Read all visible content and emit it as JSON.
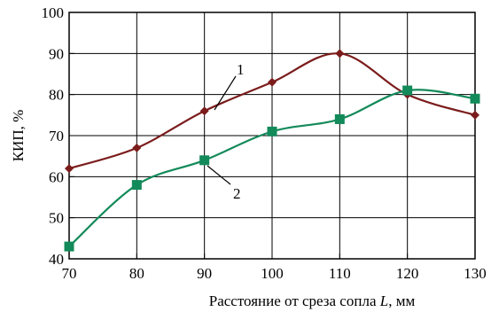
{
  "chart_data": {
    "type": "line",
    "title": "",
    "xlabel": "Расстояние от среза сопла",
    "xlabel_var": "L",
    "xlabel_unit": ", мм",
    "ylabel": "КИП, %",
    "x": [
      70,
      80,
      90,
      100,
      110,
      120,
      130
    ],
    "xlim": [
      70,
      130
    ],
    "ylim": [
      40,
      100
    ],
    "x_ticks": [
      "70",
      "80",
      "90",
      "100",
      "110",
      "120",
      "130"
    ],
    "y_ticks": [
      "40",
      "50",
      "60",
      "70",
      "80",
      "90",
      "100"
    ],
    "grid": true,
    "series": [
      {
        "name": "1",
        "color": "#7b1c1c",
        "marker": "diamond",
        "values": [
          62,
          67,
          76,
          83,
          90,
          80,
          75
        ]
      },
      {
        "name": "2",
        "color": "#138a5a",
        "marker": "square",
        "values": [
          43,
          58,
          64,
          71,
          74,
          81,
          79
        ]
      }
    ],
    "annotations": [
      "1",
      "2"
    ]
  }
}
